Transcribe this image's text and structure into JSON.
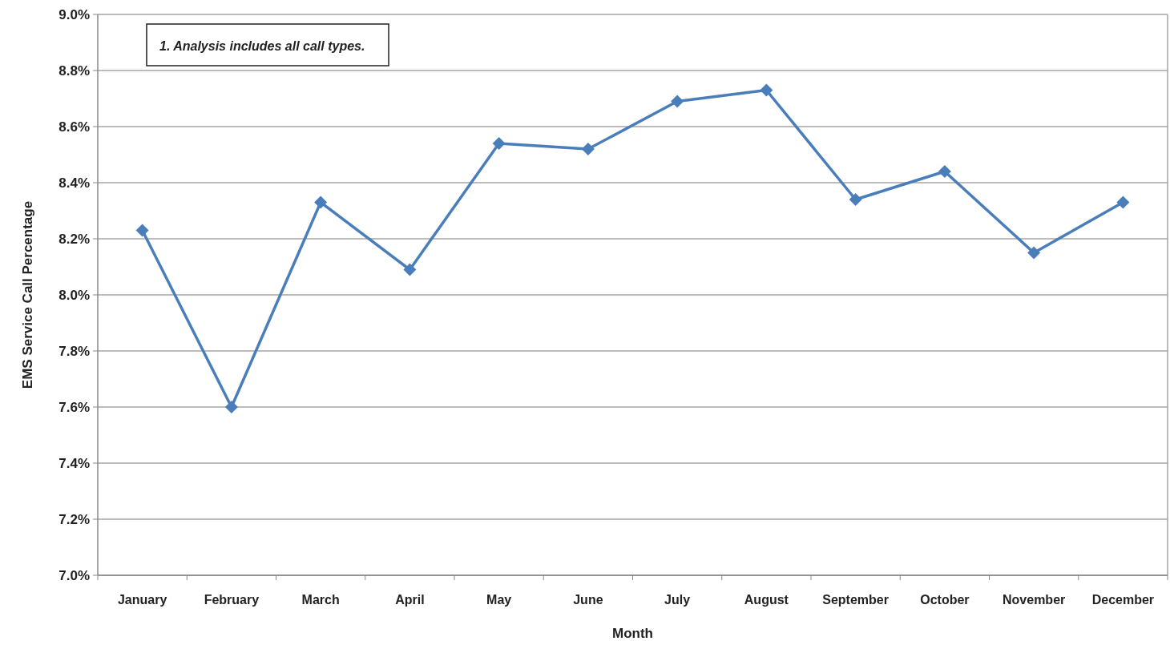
{
  "chart_data": {
    "type": "line",
    "xlabel": "Month",
    "ylabel": "EMS Service Call Percentage",
    "annotations": [
      "1. Analysis  includes all call types."
    ],
    "categories": [
      "January",
      "February",
      "March",
      "April",
      "May",
      "June",
      "July",
      "August",
      "September",
      "October",
      "November",
      "December"
    ],
    "series": [
      {
        "color": "#4a7ebb",
        "values": [
          8.23,
          7.6,
          8.33,
          8.09,
          8.54,
          8.52,
          8.69,
          8.73,
          8.34,
          8.44,
          8.15,
          8.33
        ]
      }
    ],
    "ylim": [
      7.0,
      9.0
    ],
    "yticks": [
      {
        "value": 7.0,
        "label": "7.0%"
      },
      {
        "value": 7.2,
        "label": "7.2%"
      },
      {
        "value": 7.4,
        "label": "7.4%"
      },
      {
        "value": 7.6,
        "label": "7.6%"
      },
      {
        "value": 7.8,
        "label": "7.8%"
      },
      {
        "value": 8.0,
        "label": "8.0%"
      },
      {
        "value": 8.2,
        "label": "8.2%"
      },
      {
        "value": 8.4,
        "label": "8.4%"
      },
      {
        "value": 8.6,
        "label": "8.6%"
      },
      {
        "value": 8.8,
        "label": "8.8%"
      },
      {
        "value": 9.0,
        "label": "9.0%"
      }
    ],
    "grid": "y",
    "marker": "diamond",
    "line_style": "solid"
  }
}
